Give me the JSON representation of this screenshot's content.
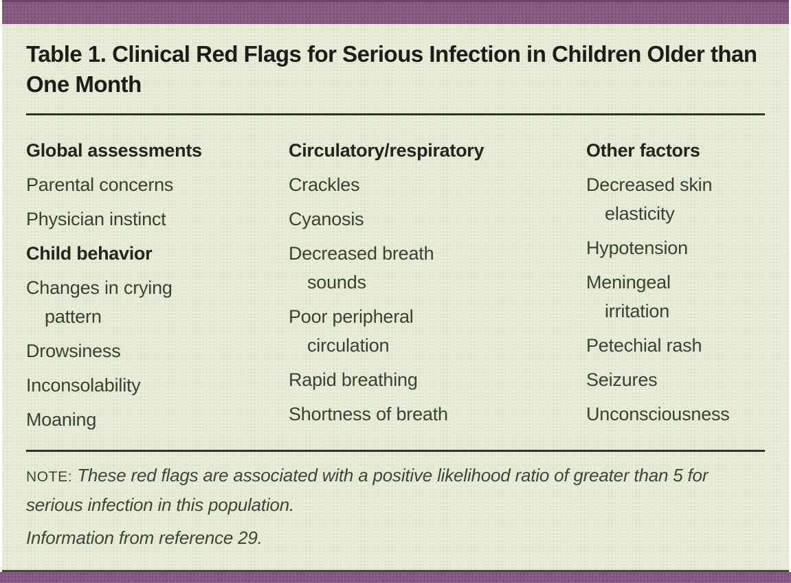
{
  "figure": {
    "title": "Table 1. Clinical Red Flags for Serious Infection in Children Older than One Month",
    "columns": [
      {
        "header": "Global assessments",
        "items": [
          {
            "text": "Parental concerns",
            "bold": false
          },
          {
            "text": "Physician instinct",
            "bold": false
          },
          {
            "text": "Child behavior",
            "bold": true
          },
          {
            "text": "Changes in crying\npattern",
            "bold": false
          },
          {
            "text": "Drowsiness",
            "bold": false
          },
          {
            "text": "Inconsolability",
            "bold": false
          },
          {
            "text": "Moaning",
            "bold": false
          }
        ]
      },
      {
        "header": "Circulatory/respiratory",
        "items": [
          {
            "text": "Crackles",
            "bold": false
          },
          {
            "text": "Cyanosis",
            "bold": false
          },
          {
            "text": "Decreased breath\nsounds",
            "bold": false
          },
          {
            "text": "Poor peripheral\ncirculation",
            "bold": false
          },
          {
            "text": "Rapid breathing",
            "bold": false
          },
          {
            "text": "Shortness of breath",
            "bold": false
          }
        ]
      },
      {
        "header": "Other factors",
        "items": [
          {
            "text": "Decreased skin\nelasticity",
            "bold": false
          },
          {
            "text": "Hypotension",
            "bold": false
          },
          {
            "text": "Meningeal\nirritation",
            "bold": false
          },
          {
            "text": "Petechial rash",
            "bold": false
          },
          {
            "text": "Seizures",
            "bold": false
          },
          {
            "text": "Unconsciousness",
            "bold": false
          }
        ]
      }
    ],
    "note_label": "NOTE:",
    "note_text": "These red flags are associated with a positive likelihood ratio of greater than 5 for serious infection in this population.",
    "source_text": "Information from reference 29.",
    "colors": {
      "accent_bar": "#8a5c86",
      "accent_bar_top_edge": "#6e4069",
      "panel_background": "#e7ecd7",
      "rule": "#2e322c",
      "bottom_rule": "#42463d",
      "title_text": "#1a1d1a",
      "body_text": "#3b4037"
    }
  }
}
